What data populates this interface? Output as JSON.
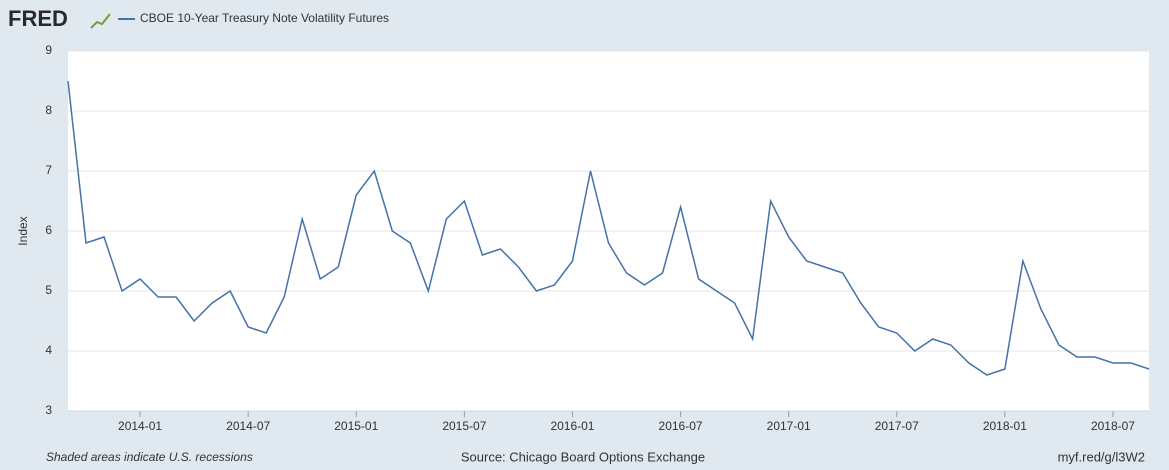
{
  "logo": "FRED",
  "chart_data": {
    "type": "line",
    "y_label": "Index",
    "note": "Shaded areas indicate U.S. recessions",
    "source": "Source: Chicago Board Options Exchange",
    "link": "myf.red/g/l3W2",
    "x": [
      "2013-09",
      "2013-10",
      "2013-11",
      "2013-12",
      "2014-01",
      "2014-02",
      "2014-03",
      "2014-04",
      "2014-05",
      "2014-06",
      "2014-07",
      "2014-08",
      "2014-09",
      "2014-10",
      "2014-11",
      "2014-12",
      "2015-01",
      "2015-02",
      "2015-03",
      "2015-04",
      "2015-05",
      "2015-06",
      "2015-07",
      "2015-08",
      "2015-09",
      "2015-10",
      "2015-11",
      "2015-12",
      "2016-01",
      "2016-02",
      "2016-03",
      "2016-04",
      "2016-05",
      "2016-06",
      "2016-07",
      "2016-08",
      "2016-09",
      "2016-10",
      "2016-11",
      "2016-12",
      "2017-01",
      "2017-02",
      "2017-03",
      "2017-04",
      "2017-05",
      "2017-06",
      "2017-07",
      "2017-08",
      "2017-09",
      "2017-10",
      "2017-11",
      "2017-12",
      "2018-01",
      "2018-02",
      "2018-03",
      "2018-04",
      "2018-05",
      "2018-06",
      "2018-07",
      "2018-08",
      "2018-09"
    ],
    "series": [
      {
        "name": "CBOE 10-Year Treasury Note Volatility Futures",
        "color": "#4572a7",
        "values": [
          8.5,
          5.8,
          5.9,
          5.0,
          5.2,
          4.9,
          4.9,
          4.5,
          4.8,
          5.0,
          4.4,
          4.3,
          4.9,
          6.2,
          5.2,
          5.4,
          6.6,
          7.0,
          6.0,
          5.8,
          5.0,
          6.2,
          6.5,
          5.6,
          5.7,
          5.4,
          5.0,
          5.1,
          5.5,
          7.0,
          5.8,
          5.3,
          5.1,
          5.3,
          6.4,
          5.2,
          5.0,
          4.8,
          4.2,
          6.5,
          5.9,
          5.5,
          5.4,
          5.3,
          4.8,
          4.4,
          4.3,
          4.0,
          4.2,
          4.1,
          3.8,
          3.6,
          3.7,
          5.5,
          4.7,
          4.1,
          3.9,
          3.9,
          3.8,
          3.8,
          3.7
        ]
      }
    ],
    "xlim": [
      "2013-09",
      "2018-09"
    ],
    "xticks": [
      "2014-01",
      "2014-07",
      "2015-01",
      "2015-07",
      "2016-01",
      "2016-07",
      "2017-01",
      "2017-07",
      "2018-01",
      "2018-07"
    ],
    "ylim": [
      3,
      9
    ],
    "yticks": [
      3,
      4,
      5,
      6,
      7,
      8,
      9
    ],
    "grid": true
  }
}
